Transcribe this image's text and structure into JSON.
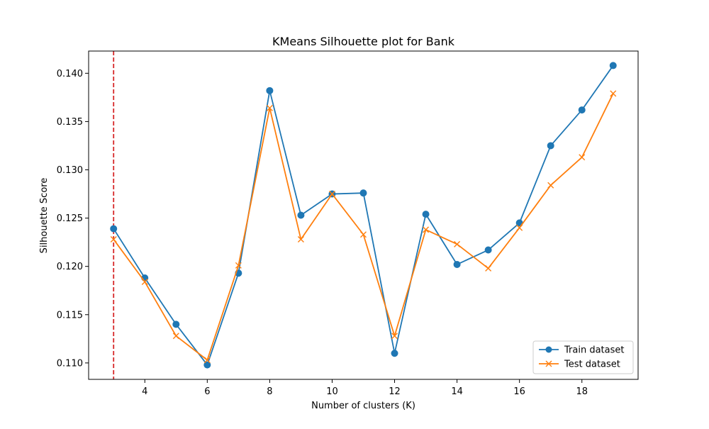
{
  "chart_data": {
    "type": "line",
    "title": "KMeans Silhouette plot for Bank",
    "xlabel": "Number of clusters (K)",
    "ylabel": "Silhouette Score",
    "x": [
      3,
      4,
      5,
      6,
      7,
      8,
      9,
      10,
      11,
      12,
      13,
      14,
      15,
      16,
      17,
      18,
      19
    ],
    "xlim": [
      2.2,
      19.8
    ],
    "ylim": [
      0.1083,
      0.1423
    ],
    "x_ticks": [
      4,
      6,
      8,
      10,
      12,
      14,
      16,
      18
    ],
    "y_ticks": [
      0.11,
      0.115,
      0.12,
      0.125,
      0.13,
      0.135,
      0.14
    ],
    "y_tick_labels": [
      "0.110",
      "0.115",
      "0.120",
      "0.125",
      "0.130",
      "0.135",
      "0.140"
    ],
    "grid": false,
    "legend_position": "lower-right",
    "series": [
      {
        "name": "Train dataset",
        "marker": "circle",
        "color": "#1f77b4",
        "values": [
          0.1239,
          0.1188,
          0.114,
          0.1098,
          0.1193,
          0.1382,
          0.1253,
          0.1275,
          0.1276,
          0.111,
          0.1254,
          0.1202,
          0.1217,
          0.1245,
          0.1325,
          0.1362,
          0.1408
        ]
      },
      {
        "name": "Test dataset",
        "marker": "x",
        "color": "#ff7f0e",
        "values": [
          0.1228,
          0.1184,
          0.1128,
          0.1103,
          0.1201,
          0.1364,
          0.1228,
          0.1275,
          0.1233,
          0.1128,
          0.1238,
          0.1223,
          0.1198,
          0.124,
          0.1284,
          0.1313,
          0.1379
        ]
      }
    ],
    "annotations": [
      {
        "type": "vline",
        "x": 3,
        "style": "dashed",
        "color": "#d62728"
      }
    ]
  }
}
